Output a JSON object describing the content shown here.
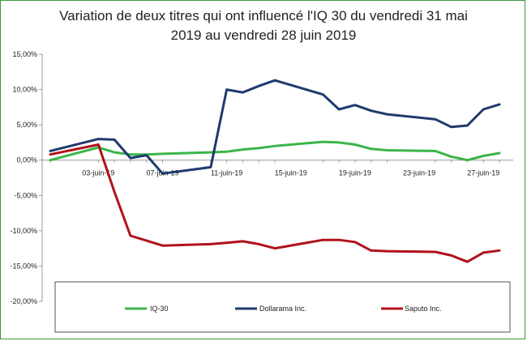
{
  "chart_data": {
    "type": "line",
    "title_line1": "Variation de deux titres qui ont influencé l'IQ 30 du vendredi 31 mai",
    "title_line2": "2019 au vendredi 28 juin 2019",
    "x": [
      "31-mai-19",
      "03-juin-19",
      "04-juin-19",
      "05-juin-19",
      "06-juin-19",
      "07-juin-19",
      "10-juin-19",
      "11-juin-19",
      "12-juin-19",
      "13-juin-19",
      "14-juin-19",
      "17-juin-19",
      "18-juin-19",
      "19-juin-19",
      "20-juin-19",
      "21-juin-19",
      "24-juin-19",
      "25-juin-19",
      "26-juin-19",
      "27-juin-19",
      "28-juin-19"
    ],
    "x_tick_labels": [
      "03-juin-19",
      "07-juin-19",
      "11-juin-19",
      "15-juin-19",
      "19-juin-19",
      "23-juin-19",
      "27-juin-19"
    ],
    "y_tick_labels": [
      "15,00%",
      "10,00%",
      "5,00%",
      "0,00%",
      "-5,00%",
      "-10,00%",
      "-15,00%",
      "-20,00%"
    ],
    "ylim": [
      -20,
      15
    ],
    "series": [
      {
        "name": "IQ-30",
        "color": "#3bb54a",
        "values": [
          0.0,
          1.8,
          1.1,
          0.8,
          0.8,
          0.9,
          1.1,
          1.2,
          1.5,
          1.7,
          2.0,
          2.6,
          2.5,
          2.2,
          1.6,
          1.4,
          1.3,
          0.5,
          0.0,
          0.6,
          1.0
        ]
      },
      {
        "name": "Dollarama Inc.",
        "color": "#1f3a6e",
        "values": [
          1.3,
          3.0,
          2.9,
          0.3,
          0.7,
          -1.9,
          -1.0,
          10.0,
          9.6,
          10.5,
          11.3,
          9.3,
          7.2,
          7.8,
          7.0,
          6.5,
          5.8,
          4.7,
          4.9,
          7.2,
          7.9
        ]
      },
      {
        "name": "Saputo Inc.",
        "color": "#b0121a",
        "values": [
          0.8,
          2.2,
          -4.5,
          -10.7,
          -11.4,
          -12.1,
          -11.9,
          -11.7,
          -11.5,
          -11.9,
          -12.5,
          -11.3,
          -11.3,
          -11.6,
          -12.8,
          -12.9,
          -13.0,
          -13.5,
          -14.4,
          -13.1,
          -12.8
        ]
      }
    ],
    "legend_position": "bottom",
    "grid": false
  }
}
